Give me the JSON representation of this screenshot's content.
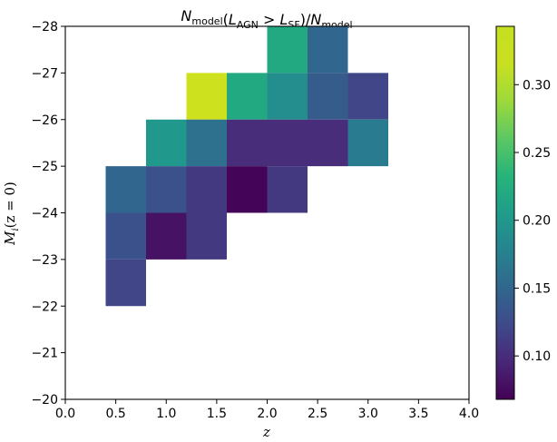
{
  "chart_data": {
    "type": "heatmap",
    "title": {
      "N": "N",
      "sub_model": "model",
      "L": "L",
      "sub_agn": "AGN",
      "gt": " > ",
      "sub_sf": "SF",
      "slash": "/"
    },
    "xlabel": "z",
    "ylabel": {
      "M": "M",
      "sub": "i",
      "rest": "(z = 0)"
    },
    "xlim": [
      0.0,
      4.0
    ],
    "ylim": [
      -20,
      -28
    ],
    "xticks": [
      "0.0",
      "0.5",
      "1.0",
      "1.5",
      "2.0",
      "2.5",
      "3.0",
      "3.5",
      "4.0"
    ],
    "yticks": [
      "−28",
      "−27",
      "−26",
      "−25",
      "−24",
      "−23",
      "−22",
      "−21",
      "−20"
    ],
    "colorbar": {
      "range": [
        0.068,
        0.343
      ],
      "ticks": [
        "0.10",
        "0.15",
        "0.20",
        "0.25",
        "0.30"
      ],
      "tick_values": [
        0.1,
        0.15,
        0.2,
        0.25,
        0.3
      ],
      "colormap": "viridis"
    },
    "cells": [
      {
        "x0": 2.0,
        "x1": 2.4,
        "y0": -27,
        "y1": -28,
        "value": 0.22
      },
      {
        "x0": 2.4,
        "x1": 2.8,
        "y0": -27,
        "y1": -28,
        "value": 0.15
      },
      {
        "x0": 1.2,
        "x1": 1.6,
        "y0": -26,
        "y1": -27,
        "value": 0.33
      },
      {
        "x0": 1.6,
        "x1": 2.0,
        "y0": -26,
        "y1": -27,
        "value": 0.22
      },
      {
        "x0": 2.0,
        "x1": 2.4,
        "y0": -26,
        "y1": -27,
        "value": 0.19
      },
      {
        "x0": 2.4,
        "x1": 2.8,
        "y0": -26,
        "y1": -27,
        "value": 0.14
      },
      {
        "x0": 2.8,
        "x1": 3.2,
        "y0": -26,
        "y1": -27,
        "value": 0.12
      },
      {
        "x0": 0.8,
        "x1": 1.2,
        "y0": -25,
        "y1": -26,
        "value": 0.2
      },
      {
        "x0": 1.2,
        "x1": 1.6,
        "y0": -25,
        "y1": -26,
        "value": 0.16
      },
      {
        "x0": 1.6,
        "x1": 2.0,
        "y0": -25,
        "y1": -26,
        "value": 0.1
      },
      {
        "x0": 2.0,
        "x1": 2.4,
        "y0": -25,
        "y1": -26,
        "value": 0.1
      },
      {
        "x0": 2.4,
        "x1": 2.8,
        "y0": -25,
        "y1": -26,
        "value": 0.1
      },
      {
        "x0": 2.8,
        "x1": 3.2,
        "y0": -25,
        "y1": -26,
        "value": 0.17
      },
      {
        "x0": 0.4,
        "x1": 0.8,
        "y0": -24,
        "y1": -25,
        "value": 0.15
      },
      {
        "x0": 0.8,
        "x1": 1.2,
        "y0": -24,
        "y1": -25,
        "value": 0.13
      },
      {
        "x0": 1.2,
        "x1": 1.6,
        "y0": -24,
        "y1": -25,
        "value": 0.11
      },
      {
        "x0": 1.6,
        "x1": 2.0,
        "y0": -24,
        "y1": -25,
        "value": 0.07
      },
      {
        "x0": 2.0,
        "x1": 2.4,
        "y0": -24,
        "y1": -25,
        "value": 0.11
      },
      {
        "x0": 0.4,
        "x1": 0.8,
        "y0": -23,
        "y1": -24,
        "value": 0.13
      },
      {
        "x0": 0.8,
        "x1": 1.2,
        "y0": -23,
        "y1": -24,
        "value": 0.08
      },
      {
        "x0": 1.2,
        "x1": 1.6,
        "y0": -23,
        "y1": -24,
        "value": 0.11
      },
      {
        "x0": 0.4,
        "x1": 0.8,
        "y0": -22,
        "y1": -23,
        "value": 0.12
      }
    ]
  }
}
